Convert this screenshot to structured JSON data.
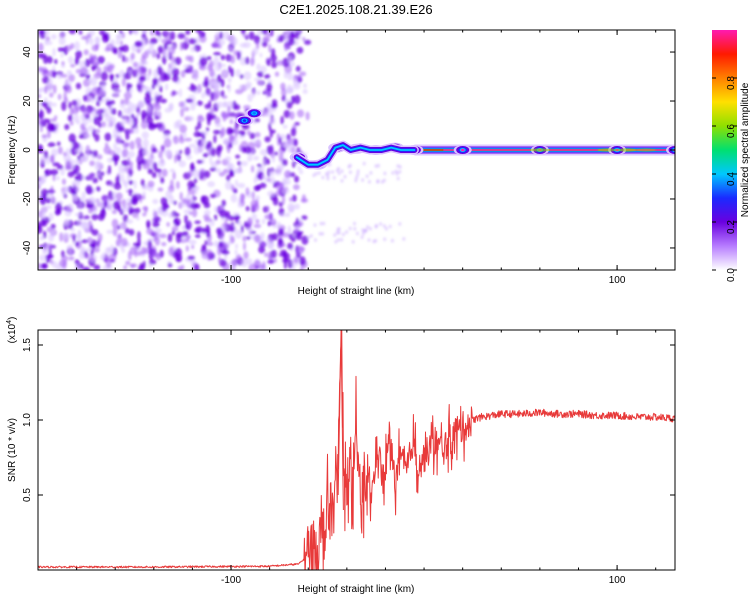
{
  "title": "C2E1.2025.108.21.39.E26",
  "colors": {
    "snr_line": "#e83a3a",
    "colormap": [
      "#ffffff",
      "#b77cff",
      "#6a00e0",
      "#1a2aff",
      "#00c8ff",
      "#00e070",
      "#8fe000",
      "#ffe000",
      "#ff8000",
      "#ff1a00",
      "#ff1ab0"
    ]
  },
  "chart_data": [
    {
      "type": "heatmap",
      "xlabel": "Height of straight line (km)",
      "ylabel": "Frequency (Hz)",
      "xlim": [
        -200,
        130
      ],
      "ylim": [
        -49,
        49
      ],
      "xticks": [
        -100,
        100
      ],
      "yticks": [
        -40,
        -20,
        0,
        20,
        40
      ],
      "colorbar": {
        "label": "Normalized spectral amplitude",
        "range": [
          0,
          1
        ],
        "ticks": [
          "0.0",
          "0.2",
          "0.4",
          "0.6",
          "0.8"
        ]
      },
      "noise_region_x": [
        -200,
        -60
      ],
      "ridge_points": [
        {
          "x": -93,
          "freq": 12,
          "amp": 0.3
        },
        {
          "x": -88,
          "freq": 15,
          "amp": 0.35
        },
        {
          "x": -65,
          "freq": -3,
          "amp": 0.3
        },
        {
          "x": -55,
          "freq": -6,
          "amp": 0.45
        },
        {
          "x": -45,
          "freq": 1,
          "amp": 0.5
        },
        {
          "x": -35,
          "freq": 0.5,
          "amp": 0.55
        },
        {
          "x": -25,
          "freq": 0,
          "amp": 0.6
        },
        {
          "x": -15,
          "freq": 1,
          "amp": 0.65
        },
        {
          "x": -5,
          "freq": 0,
          "amp": 0.6
        },
        {
          "x": 20,
          "freq": 0,
          "amp": 1.0
        },
        {
          "x": 60,
          "freq": 0,
          "amp": 1.0
        },
        {
          "x": 100,
          "freq": 0,
          "amp": 1.0
        },
        {
          "x": 130,
          "freq": 0,
          "amp": 1.0
        }
      ]
    },
    {
      "type": "line",
      "xlabel": "Height of straight line (km)",
      "ylabel": "SNR (10 * v/v)",
      "y_multiplier": "x10^4",
      "xlim": [
        -200,
        130
      ],
      "ylim": [
        0,
        1.6
      ],
      "xticks": [
        -100,
        100
      ],
      "yticks": [
        0.5,
        1.0,
        1.5
      ],
      "series": [
        {
          "x": [
            -200,
            -140,
            -80,
            -65,
            -58,
            -52,
            -48,
            -45,
            -43,
            -41,
            -39,
            -37,
            -35,
            -33,
            -30,
            -27,
            -24,
            -21,
            -18,
            -15,
            -12,
            -9,
            -6,
            -3,
            0,
            5,
            10,
            15,
            20,
            25,
            30,
            40,
            50,
            60,
            70,
            80,
            90,
            100,
            110,
            120,
            130
          ],
          "y": [
            0.02,
            0.02,
            0.025,
            0.04,
            0.12,
            0.25,
            0.4,
            0.5,
            1.6,
            0.35,
            0.8,
            0.3,
            0.95,
            0.45,
            0.6,
            0.5,
            0.85,
            0.55,
            0.9,
            0.6,
            0.75,
            0.65,
            0.85,
            0.7,
            0.75,
            0.85,
            0.8,
            0.9,
            0.95,
            1.0,
            1.02,
            1.04,
            1.04,
            1.05,
            1.04,
            1.04,
            1.03,
            1.03,
            1.02,
            1.02,
            1.01
          ]
        }
      ]
    }
  ]
}
